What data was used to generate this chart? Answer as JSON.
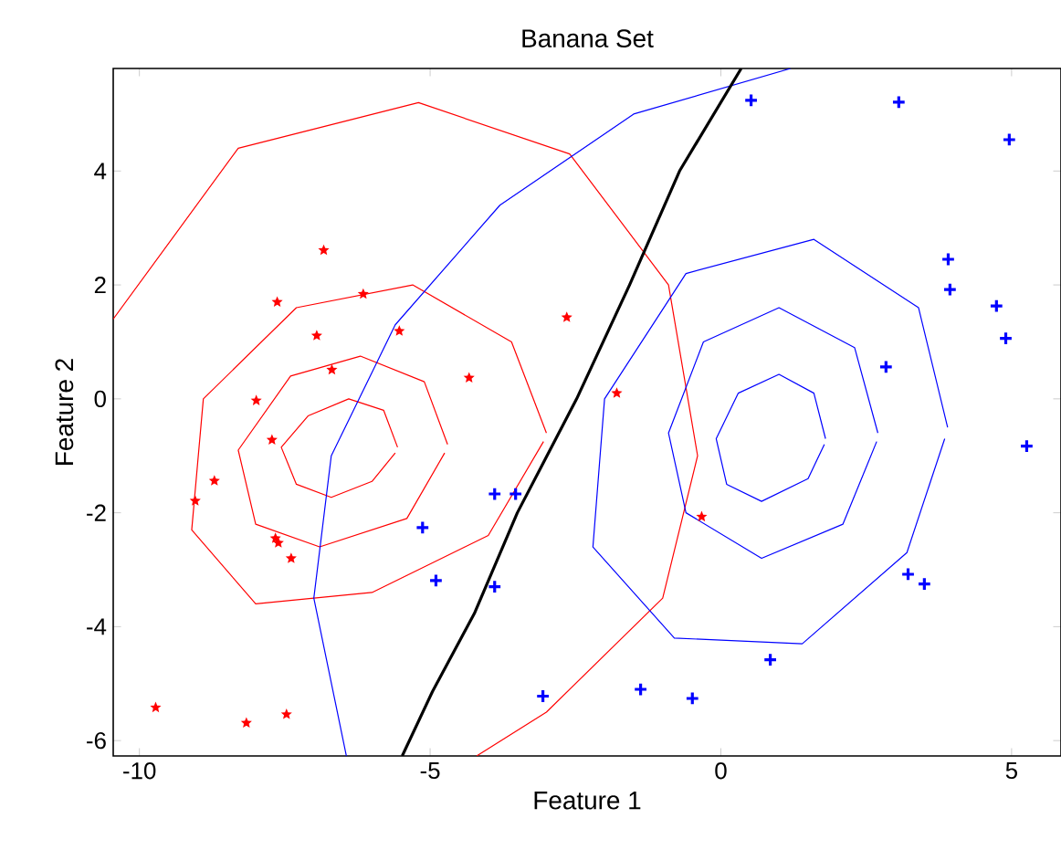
{
  "chart_data": {
    "type": "scatter",
    "title": "Banana Set",
    "xlabel": "Feature 1",
    "ylabel": "Feature 2",
    "xlim": [
      -10.45,
      5.85
    ],
    "ylim": [
      -6.27,
      5.8
    ],
    "xticks": [
      -10,
      -5,
      0,
      5
    ],
    "yticks": [
      -6,
      -4,
      -2,
      0,
      2,
      4
    ],
    "grid": false,
    "series": [
      {
        "type": "line",
        "color": "#ff0000",
        "x": [
          -5.56,
          -5.8,
          -6.4,
          -7.1,
          -7.56,
          -7.3,
          -6.7,
          -6.0,
          -5.6
        ],
        "values": [
          -0.85,
          -0.2,
          0.0,
          -0.3,
          -0.85,
          -1.5,
          -1.73,
          -1.45,
          -0.95
        ]
      },
      {
        "type": "line",
        "color": "#ff0000",
        "x": [
          -4.7,
          -5.1,
          -6.2,
          -7.4,
          -8.3,
          -8.0,
          -6.9,
          -5.4,
          -4.75
        ],
        "values": [
          -0.8,
          0.3,
          0.75,
          0.4,
          -0.9,
          -2.2,
          -2.6,
          -2.1,
          -0.95
        ]
      },
      {
        "type": "line",
        "color": "#ff0000",
        "x": [
          -3.0,
          -3.6,
          -5.3,
          -7.3,
          -8.9,
          -9.1,
          -8.0,
          -6.0,
          -4.0,
          -3.05
        ],
        "values": [
          -0.6,
          1.0,
          2.0,
          1.6,
          0.0,
          -2.3,
          -3.6,
          -3.4,
          -2.4,
          -0.75
        ]
      },
      {
        "type": "line",
        "color": "#ff0000",
        "x": [
          -10.45,
          -8.3,
          -5.2,
          -2.6,
          -0.9,
          -0.4,
          -1.0,
          -3.0,
          -4.2
        ],
        "values": [
          1.4,
          4.4,
          5.2,
          4.3,
          2.0,
          -1.0,
          -3.5,
          -5.5,
          -6.27
        ]
      },
      {
        "type": "line",
        "color": "#0000ff",
        "x": [
          1.8,
          1.6,
          1.0,
          0.3,
          -0.08,
          0.1,
          0.7,
          1.5,
          1.78
        ],
        "values": [
          -0.7,
          0.1,
          0.43,
          0.1,
          -0.7,
          -1.5,
          -1.8,
          -1.4,
          -0.8
        ]
      },
      {
        "type": "line",
        "color": "#0000ff",
        "x": [
          2.7,
          2.3,
          1.0,
          -0.3,
          -0.9,
          -0.6,
          0.7,
          2.1,
          2.68
        ],
        "values": [
          -0.6,
          0.9,
          1.6,
          1.0,
          -0.6,
          -2.0,
          -2.8,
          -2.2,
          -0.75
        ]
      },
      {
        "type": "line",
        "color": "#0000ff",
        "x": [
          3.9,
          3.4,
          1.6,
          -0.6,
          -2.0,
          -2.2,
          -0.8,
          1.4,
          3.2,
          3.85
        ],
        "values": [
          -0.5,
          1.6,
          2.8,
          2.2,
          0.0,
          -2.6,
          -4.2,
          -4.3,
          -2.7,
          -0.7
        ]
      },
      {
        "type": "line",
        "color": "#0000ff",
        "x": [
          -6.44,
          -7.0,
          -6.7,
          -5.6,
          -3.8,
          -1.5,
          1.2
        ],
        "values": [
          -6.27,
          -3.5,
          -1.0,
          1.3,
          3.4,
          5.0,
          5.8
        ]
      },
      {
        "type": "scatter",
        "color": "#ff0000",
        "marker": "star",
        "x": [
          -6.83,
          -7.63,
          -6.15,
          -6.95,
          -5.53,
          -6.69,
          -4.33,
          -2.65,
          -1.79,
          -7.99,
          -7.72,
          -8.71,
          -9.04,
          -7.66,
          -7.61,
          -7.39,
          -0.33,
          -9.72,
          -8.16,
          -7.47
        ],
        "values": [
          2.61,
          1.7,
          1.84,
          1.11,
          1.19,
          0.51,
          0.37,
          1.43,
          0.1,
          -0.03,
          -0.72,
          -1.44,
          -1.79,
          -2.45,
          -2.53,
          -2.8,
          -2.07,
          -5.42,
          -5.69,
          -5.54
        ]
      },
      {
        "type": "scatter",
        "color": "#0000ff",
        "marker": "cross",
        "x": [
          0.52,
          3.06,
          4.96,
          3.91,
          3.94,
          4.74,
          4.9,
          2.84,
          5.26,
          -3.89,
          -3.53,
          -5.13,
          -4.9,
          -3.89,
          -3.06,
          -1.38,
          -0.49,
          0.85,
          3.22,
          3.5
        ],
        "values": [
          5.24,
          5.21,
          4.55,
          2.45,
          1.92,
          1.63,
          1.06,
          0.56,
          -0.83,
          -1.67,
          -1.67,
          -2.26,
          -3.19,
          -3.3,
          -5.22,
          -5.1,
          -5.26,
          -4.58,
          -3.08,
          -3.25
        ]
      },
      {
        "type": "line",
        "color": "#000000",
        "x": [
          -5.48,
          -4.96,
          -4.24,
          -3.5,
          -2.48,
          -1.57,
          -0.71,
          0.35
        ],
        "values": [
          -6.27,
          -5.14,
          -3.77,
          -2.0,
          0.0,
          2.0,
          4.0,
          5.8
        ]
      }
    ]
  }
}
